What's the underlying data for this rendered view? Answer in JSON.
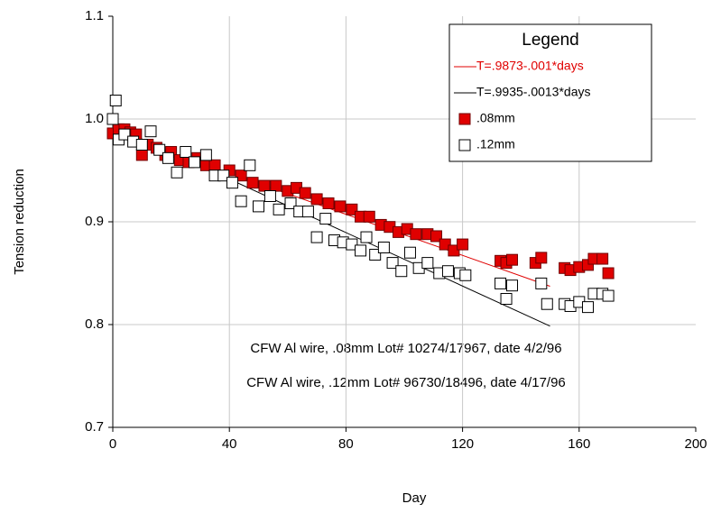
{
  "chart_data": {
    "type": "scatter",
    "xlabel": "Day",
    "ylabel": "Tension reduction",
    "xlim": [
      0,
      200
    ],
    "xticks": [
      0,
      40,
      80,
      120,
      160,
      200
    ],
    "ylim": [
      0.7,
      1.1
    ],
    "yticks": [
      0.7,
      0.8,
      0.9,
      {
        "value": 1,
        "label": "1.0"
      },
      1.1
    ],
    "grid": true,
    "legend_title": "Legend",
    "legend": "upper right",
    "annotations": [
      "CFW Al wire, .08mm Lot# 10274/17967, date 4/2/96",
      "CFW Al wire, .12mm Lot# 96730/18496, date 4/17/96"
    ],
    "series": [
      {
        "name": "T=.9873-.001*days",
        "color": "#e00000",
        "marker": "line",
        "x": [
          0,
          150
        ],
        "values": [
          0.9873,
          0.8373
        ]
      },
      {
        "name": "T=.9935-.0013*days",
        "color": "#000000",
        "marker": "line",
        "x": [
          0,
          150
        ],
        "values": [
          0.9935,
          0.7985
        ]
      },
      {
        "name": ".08mm",
        "color": "#e00000",
        "marker": "square",
        "x": [
          0,
          2,
          4,
          6,
          8,
          10,
          12,
          15,
          18,
          20,
          23,
          26,
          29,
          32,
          35,
          40,
          44,
          48,
          52,
          56,
          60,
          63,
          66,
          70,
          74,
          78,
          82,
          85,
          88,
          92,
          95,
          98,
          101,
          104,
          108,
          111,
          114,
          117,
          120,
          133,
          135,
          137,
          145,
          147,
          155,
          157,
          160,
          163,
          165,
          168,
          170
        ],
        "values": [
          0.986,
          0.99,
          0.99,
          0.987,
          0.985,
          0.965,
          0.975,
          0.972,
          0.965,
          0.968,
          0.96,
          0.958,
          0.962,
          0.955,
          0.955,
          0.95,
          0.945,
          0.938,
          0.935,
          0.935,
          0.93,
          0.933,
          0.928,
          0.922,
          0.918,
          0.915,
          0.912,
          0.905,
          0.905,
          0.897,
          0.895,
          0.89,
          0.893,
          0.888,
          0.888,
          0.886,
          0.878,
          0.872,
          0.878,
          0.862,
          0.86,
          0.863,
          0.86,
          0.865,
          0.855,
          0.853,
          0.856,
          0.858,
          0.864,
          0.864,
          0.85
        ]
      },
      {
        "name": ".12mm",
        "color": "#ffffff",
        "marker": "square",
        "x": [
          0,
          1,
          2,
          4,
          7,
          10,
          13,
          16,
          19,
          22,
          25,
          28,
          32,
          35,
          38,
          41,
          44,
          47,
          50,
          54,
          57,
          61,
          64,
          67,
          70,
          73,
          76,
          79,
          82,
          85,
          87,
          90,
          93,
          96,
          99,
          102,
          105,
          108,
          112,
          115,
          119,
          121,
          133,
          135,
          137,
          147,
          149,
          155,
          157,
          160,
          163,
          165,
          168,
          170
        ],
        "values": [
          1.0,
          1.018,
          0.98,
          0.985,
          0.978,
          0.975,
          0.988,
          0.97,
          0.962,
          0.948,
          0.968,
          0.958,
          0.965,
          0.945,
          0.945,
          0.938,
          0.92,
          0.955,
          0.915,
          0.925,
          0.912,
          0.918,
          0.91,
          0.91,
          0.885,
          0.903,
          0.882,
          0.88,
          0.878,
          0.872,
          0.885,
          0.868,
          0.875,
          0.86,
          0.852,
          0.87,
          0.855,
          0.86,
          0.85,
          0.852,
          0.85,
          0.848,
          0.84,
          0.825,
          0.838,
          0.84,
          0.82,
          0.82,
          0.818,
          0.822,
          0.817,
          0.83,
          0.83,
          0.828
        ]
      }
    ]
  }
}
